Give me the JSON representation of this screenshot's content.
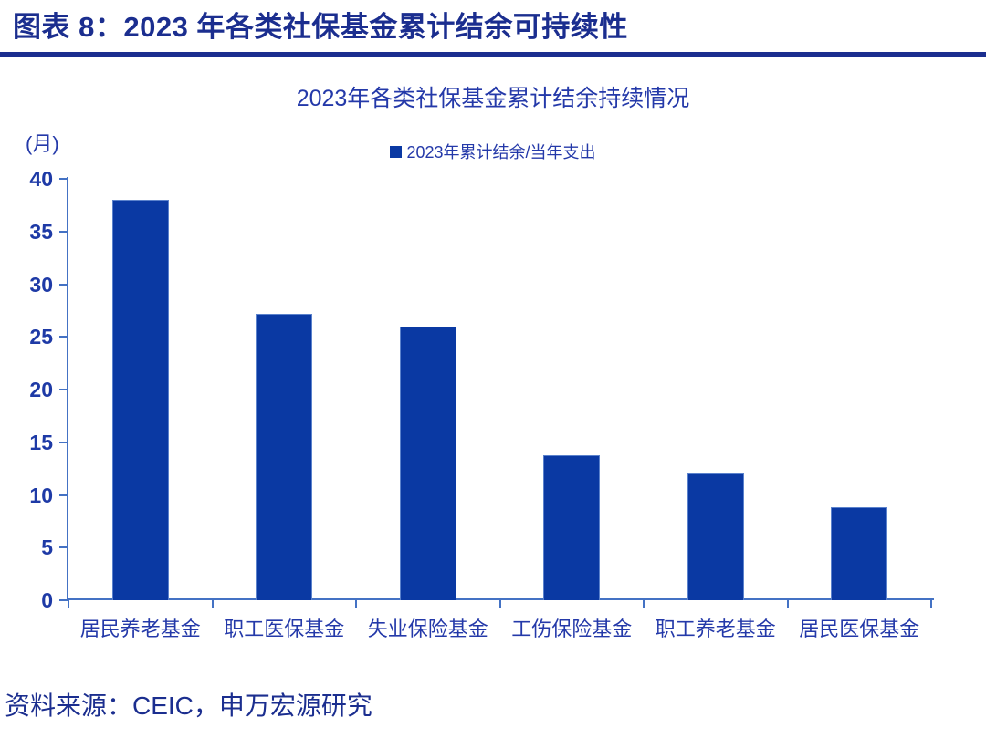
{
  "header": {
    "title": "图表 8：2023 年各类社保基金累计结余可持续性"
  },
  "source": {
    "text": "资料来源：CEIC，申万宏源研究"
  },
  "colors": {
    "bar_fill": "#0A39A3",
    "bar_border": "#5B82CC",
    "axis": "#4472C4",
    "y_tick_label": "#1E3AA6",
    "chart_text": "#2439A9",
    "header_text": "#1B2E8F",
    "source_text": "#1B2E8F"
  },
  "chart_data": {
    "type": "bar",
    "title": "2023年各类社保基金累计结余持续情况",
    "unit_label": "(月)",
    "legend": [
      "2023年累计结余/当年支出"
    ],
    "legend_position": "top-center",
    "categories": [
      "居民养老基金",
      "职工医保基金",
      "失业保险基金",
      "工伤保险基金",
      "职工养老基金",
      "居民医保基金"
    ],
    "values": [
      38.0,
      27.2,
      26.0,
      13.8,
      12.0,
      8.8
    ],
    "xlabel": "",
    "ylabel": "(月)",
    "ylim": [
      0,
      40
    ],
    "yticks": [
      0,
      5,
      10,
      15,
      20,
      25,
      30,
      35,
      40
    ],
    "grid": false
  }
}
